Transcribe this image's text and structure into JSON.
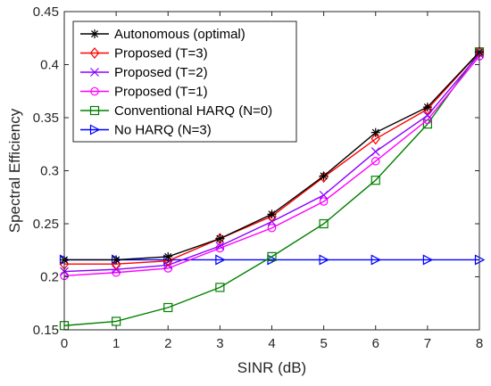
{
  "chart_data": {
    "type": "line",
    "title": "",
    "xlabel": "SINR (dB)",
    "ylabel": "Spectral Efficiency",
    "xlim": [
      0,
      8
    ],
    "ylim": [
      0.15,
      0.45
    ],
    "xticks": [
      0,
      1,
      2,
      3,
      4,
      5,
      6,
      7,
      8
    ],
    "yticks": [
      0.15,
      0.2,
      0.25,
      0.3,
      0.35,
      0.4,
      0.45
    ],
    "ytick_labels": [
      "0.15",
      "0.2",
      "0.25",
      "0.3",
      "0.35",
      "0.4",
      "0.45"
    ],
    "grid": false,
    "legend_position": "top-left",
    "x": [
      0,
      1,
      2,
      3,
      4,
      5,
      6,
      7,
      8
    ],
    "series": [
      {
        "name": "Autonomous (optimal)",
        "color": "#000000",
        "marker": "asterisk",
        "values": [
          0.216,
          0.216,
          0.219,
          0.236,
          0.259,
          0.295,
          0.336,
          0.36,
          0.412
        ]
      },
      {
        "name": "Proposed (T=3)",
        "color": "#ff0000",
        "marker": "diamond",
        "values": [
          0.212,
          0.212,
          0.215,
          0.236,
          0.257,
          0.294,
          0.33,
          0.358,
          0.412
        ]
      },
      {
        "name": "Proposed (T=2)",
        "color": "#8b00ff",
        "marker": "cross",
        "values": [
          0.205,
          0.207,
          0.211,
          0.229,
          0.252,
          0.277,
          0.318,
          0.352,
          0.41
        ]
      },
      {
        "name": "Proposed (T=1)",
        "color": "#ff00ff",
        "marker": "circle",
        "values": [
          0.201,
          0.204,
          0.208,
          0.227,
          0.246,
          0.271,
          0.309,
          0.348,
          0.408
        ]
      },
      {
        "name": "Conventional HARQ (N=0)",
        "color": "#008000",
        "marker": "square",
        "values": [
          0.154,
          0.158,
          0.171,
          0.19,
          0.219,
          0.25,
          0.291,
          0.344,
          0.412
        ]
      },
      {
        "name": "No HARQ (N=3)",
        "color": "#0000ff",
        "marker": "triangle-right",
        "values": [
          0.216,
          0.216,
          0.216,
          0.216,
          0.216,
          0.216,
          0.216,
          0.216,
          0.216
        ]
      }
    ]
  }
}
